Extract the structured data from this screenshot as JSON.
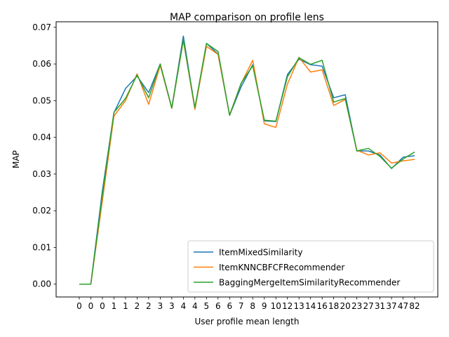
{
  "chart_data": {
    "type": "line",
    "title": "MAP comparison on profile lens",
    "xlabel": "User profile mean length",
    "ylabel": "MAP",
    "x_tick_labels": [
      "0",
      "0",
      "0",
      "1",
      "1",
      "2",
      "2",
      "3",
      "3",
      "4",
      "4",
      "5",
      "6",
      "6",
      "7",
      "8",
      "9",
      "10",
      "12",
      "13",
      "14",
      "16",
      "18",
      "20",
      "23",
      "27",
      "31",
      "37",
      "47",
      "82"
    ],
    "ylim": [
      -0.0035,
      0.0715
    ],
    "yticks": [
      0.0,
      0.01,
      0.02,
      0.03,
      0.04,
      0.05,
      0.06,
      0.07
    ],
    "ytick_labels": [
      "0.00",
      "0.01",
      "0.02",
      "0.03",
      "0.04",
      "0.05",
      "0.06",
      "0.07"
    ],
    "grid": false,
    "legend_position": "lower-right",
    "series": [
      {
        "name": "ItemMixedSimilarity",
        "color": "#1f77b4",
        "values": [
          0.0,
          0.0,
          0.0255,
          0.0467,
          0.0533,
          0.0567,
          0.0522,
          0.06,
          0.048,
          0.0676,
          0.0478,
          0.0656,
          0.0627,
          0.046,
          0.0538,
          0.0598,
          0.0445,
          0.0443,
          0.0571,
          0.0613,
          0.0598,
          0.0594,
          0.0508,
          0.0516,
          0.0363,
          0.0363,
          0.0352,
          0.0315,
          0.0346,
          0.035
        ]
      },
      {
        "name": "ItemKNNCBFCFRecommender",
        "color": "#ff7f0e",
        "values": [
          0.0,
          0.0,
          0.0227,
          0.0458,
          0.05,
          0.0573,
          0.049,
          0.0596,
          0.0479,
          0.0664,
          0.0476,
          0.0648,
          0.0626,
          0.0461,
          0.0547,
          0.061,
          0.0437,
          0.0427,
          0.0545,
          0.0618,
          0.0578,
          0.0584,
          0.0487,
          0.0503,
          0.0365,
          0.0352,
          0.0358,
          0.033,
          0.0336,
          0.034
        ]
      },
      {
        "name": "BaggingMergeItemSimilarityRecommender",
        "color": "#2ca02c",
        "values": [
          0.0,
          0.0,
          0.0243,
          0.0468,
          0.0506,
          0.057,
          0.0508,
          0.06,
          0.048,
          0.0666,
          0.0481,
          0.0656,
          0.0634,
          0.046,
          0.0548,
          0.0595,
          0.0447,
          0.0444,
          0.0565,
          0.0617,
          0.0599,
          0.061,
          0.0496,
          0.0506,
          0.0363,
          0.037,
          0.0348,
          0.0316,
          0.0341,
          0.036
        ]
      }
    ]
  }
}
